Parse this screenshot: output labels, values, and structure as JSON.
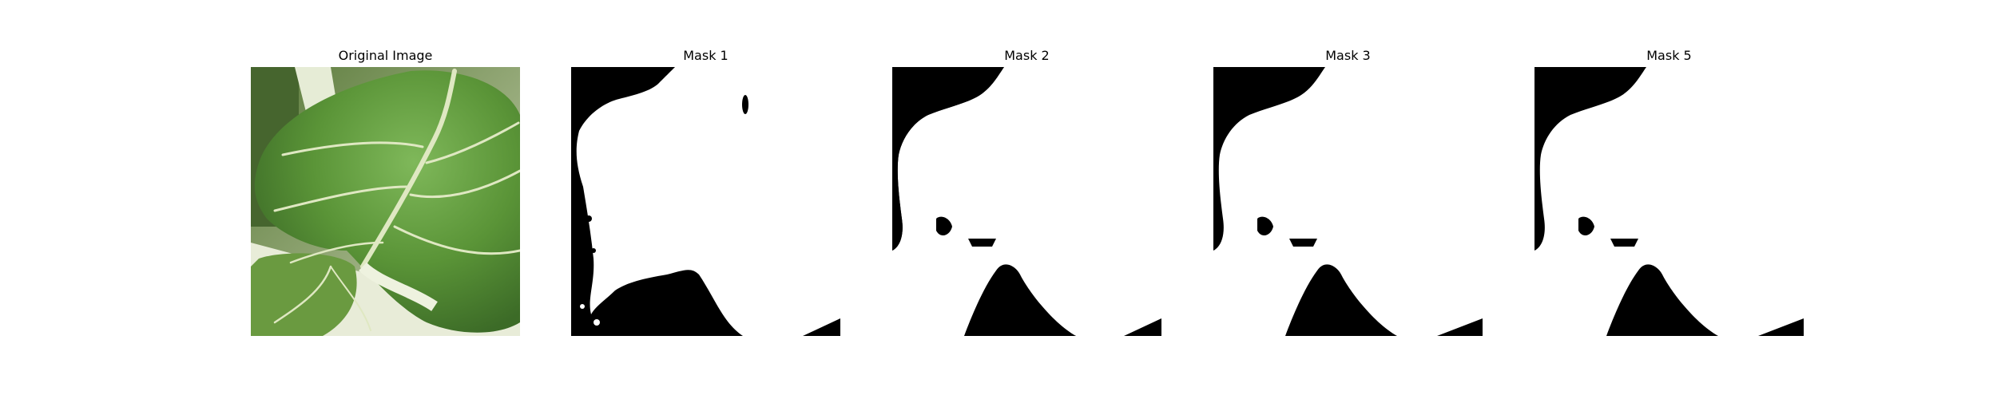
{
  "figure": {
    "panels": [
      {
        "title": "Original Image",
        "kind": "photo",
        "subject": "leaf-photo"
      },
      {
        "title": "Mask 1",
        "kind": "mask"
      },
      {
        "title": "Mask 2",
        "kind": "mask"
      },
      {
        "title": "Mask 3",
        "kind": "mask"
      },
      {
        "title": "Mask 5",
        "kind": "mask"
      }
    ],
    "colors": {
      "mask_foreground": "#ffffff",
      "mask_background": "#000000",
      "leaf_green": "#5f9a3a",
      "leaf_dark": "#3e6b2a",
      "stem_white": "#e9eedb"
    }
  }
}
